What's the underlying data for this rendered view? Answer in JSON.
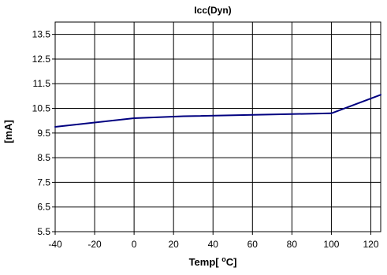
{
  "chart_data": {
    "type": "line",
    "title": "Icc(Dyn)",
    "xlabel_main": "Temp[ ",
    "xlabel_degree": "o",
    "xlabel_unit": "C]",
    "ylabel": "[mA]",
    "xlim": [
      -40,
      125
    ],
    "ylim": [
      5.5,
      14.0
    ],
    "xticks": [
      -40,
      -20,
      0,
      20,
      40,
      60,
      80,
      100,
      120
    ],
    "yticks": [
      5.5,
      6.5,
      7.5,
      8.5,
      9.5,
      10.5,
      11.5,
      12.5,
      13.5
    ],
    "ytick_labels": [
      "5.5",
      "6.5",
      "7.5",
      "8.5",
      "9.5",
      "10.5",
      "11.5",
      "12.5",
      "13.5"
    ],
    "grid": true,
    "series": [
      {
        "color": "#000080",
        "x": [
          -40,
          0,
          25,
          100,
          125
        ],
        "y": [
          9.75,
          10.1,
          10.18,
          10.3,
          11.05
        ]
      }
    ]
  }
}
